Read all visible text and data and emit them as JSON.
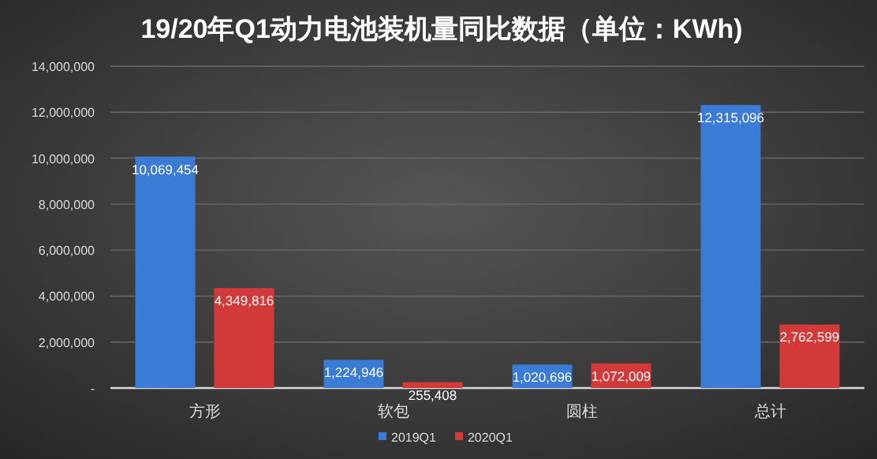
{
  "chart_data": {
    "type": "bar",
    "title": "19/20年Q1动力电池装机量同比数据（单位：KWh)",
    "categories": [
      "方形",
      "软包",
      "圆柱",
      "总计"
    ],
    "series": [
      {
        "name": "2019Q1",
        "color": "#3a7bd5",
        "values": [
          10069454,
          1224946,
          1020696,
          12315096
        ],
        "value_labels": [
          "10,069,454",
          "1,224,946",
          "1,020,696",
          "12,315,096"
        ]
      },
      {
        "name": "2020Q1",
        "color": "#d23a3a",
        "values": [
          4349816,
          255408,
          1072009,
          2762599
        ],
        "value_labels": [
          "4,349,816",
          "255,408",
          "1,072,009",
          "2,762,599"
        ]
      }
    ],
    "ylim": [
      0,
      14000000
    ],
    "yticks": [
      {
        "value": 0,
        "label": "-"
      },
      {
        "value": 2000000,
        "label": "2,000,000"
      },
      {
        "value": 4000000,
        "label": "4,000,000"
      },
      {
        "value": 6000000,
        "label": "6,000,000"
      },
      {
        "value": 8000000,
        "label": "8,000,000"
      },
      {
        "value": 10000000,
        "label": "10,000,000"
      },
      {
        "value": 12000000,
        "label": "12,000,000"
      },
      {
        "value": 14000000,
        "label": "14,000,000"
      }
    ],
    "grid": "y",
    "legend": "bottom"
  }
}
